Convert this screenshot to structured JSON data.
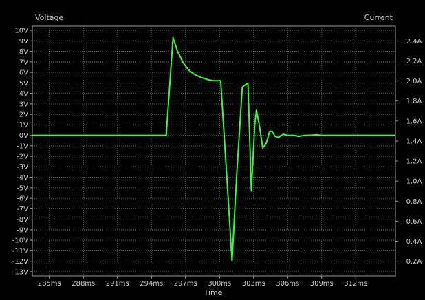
{
  "chart_data": {
    "type": "line",
    "ylabel_left": "Voltage",
    "ylabel_right": "Current",
    "xlabel": "Time",
    "background_color": "#000000",
    "grid_color": "#5a5a5a",
    "frame_color": "#9a9a9a",
    "trace_color": "#33ff33",
    "grid": true,
    "x_unit": "ms",
    "x_range": [
      283.5,
      315.5
    ],
    "x_ticks": [
      285,
      288,
      291,
      294,
      297,
      300,
      303,
      306,
      309,
      312
    ],
    "x_tick_labels": [
      "285ms",
      "288ms",
      "291ms",
      "294ms",
      "297ms",
      "300ms",
      "303ms",
      "306ms",
      "309ms",
      "312ms"
    ],
    "y_left_unit": "V",
    "y_left_range": [
      -13.4,
      10.4
    ],
    "y_left_ticks": [
      10,
      9,
      8,
      7,
      6,
      5,
      4,
      3,
      2,
      1,
      0,
      -1,
      -2,
      -3,
      -4,
      -5,
      -6,
      -7,
      -8,
      -9,
      -10,
      -11,
      -12,
      -13
    ],
    "y_left_tick_labels": [
      "10V",
      "9V",
      "8V",
      "7V",
      "6V",
      "5V",
      "4V",
      "3V",
      "2V",
      "1V",
      "0V",
      "-1V",
      "-2V",
      "-3V",
      "-4V",
      "-5V",
      "-6V",
      "-7V",
      "-8V",
      "-9V",
      "-10V",
      "-11V",
      "-12V",
      "-13V"
    ],
    "y_right_unit": "A",
    "y_right_ticks": [
      2.4,
      2.2,
      2.0,
      1.8,
      1.6,
      1.4,
      1.2,
      1.0,
      0.8,
      0.6,
      0.4,
      0.2
    ],
    "y_right_tick_labels": [
      "2.4A",
      "2.2A",
      "2.0A",
      "1.8A",
      "1.6A",
      "1.4A",
      "1.2A",
      "1.0A",
      "0.8A",
      "0.6A",
      "0.4A",
      "0.2A"
    ],
    "series": [
      {
        "axis": "left",
        "points": [
          [
            283.5,
            0
          ],
          [
            295.3,
            0
          ],
          [
            295.9,
            9.3
          ],
          [
            296.3,
            8.0
          ],
          [
            296.8,
            6.9
          ],
          [
            297.3,
            6.2
          ],
          [
            297.8,
            5.8
          ],
          [
            298.4,
            5.5
          ],
          [
            299.0,
            5.3
          ],
          [
            299.5,
            5.2
          ],
          [
            300.1,
            5.2
          ],
          [
            300.7,
            -5.0
          ],
          [
            301.1,
            -12.0
          ],
          [
            301.5,
            -4.0
          ],
          [
            302.0,
            4.6
          ],
          [
            302.5,
            5.0
          ],
          [
            302.8,
            -5.3
          ],
          [
            303.1,
            1.0
          ],
          [
            303.25,
            2.4
          ],
          [
            303.5,
            1.0
          ],
          [
            303.8,
            -1.2
          ],
          [
            304.1,
            -0.8
          ],
          [
            304.4,
            0.3
          ],
          [
            304.6,
            0.4
          ],
          [
            304.9,
            -0.1
          ],
          [
            305.2,
            -0.2
          ],
          [
            305.6,
            0.1
          ],
          [
            306.0,
            0.0
          ],
          [
            306.5,
            0.0
          ],
          [
            307.0,
            -0.1
          ],
          [
            307.5,
            0.0
          ],
          [
            308.0,
            0.0
          ],
          [
            308.5,
            0.05
          ],
          [
            309.0,
            0.0
          ],
          [
            315.5,
            0.0
          ]
        ]
      }
    ]
  }
}
